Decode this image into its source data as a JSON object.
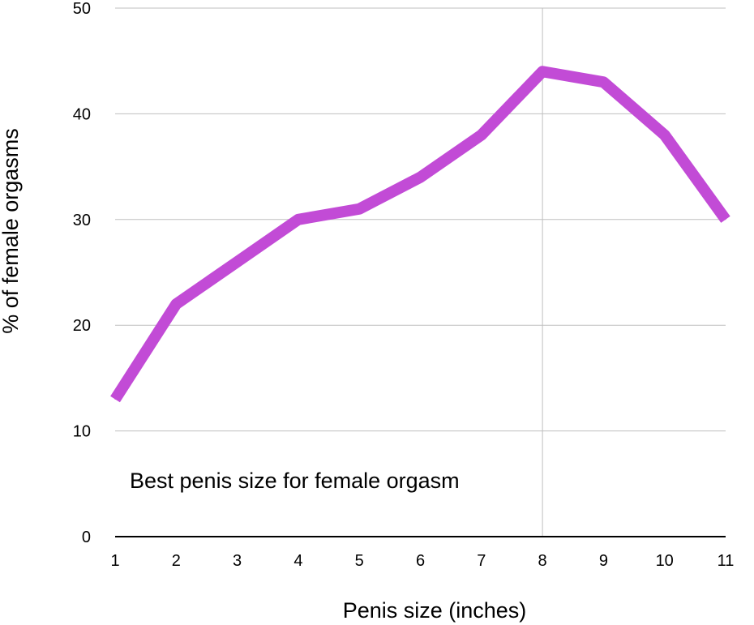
{
  "chart_data": {
    "type": "line",
    "x": [
      1,
      2,
      3,
      4,
      5,
      6,
      7,
      8,
      9,
      10,
      11
    ],
    "series": [
      {
        "values": [
          13,
          22,
          26,
          30,
          31,
          34,
          38,
          44,
          43,
          38,
          30
        ]
      }
    ],
    "xlabel": "Penis size (inches)",
    "ylabel": "% of female orgasms",
    "annotation": "Best penis size for female orgasm",
    "xlim": [
      1,
      11
    ],
    "ylim": [
      0,
      50
    ],
    "x_ticks": [
      "1",
      "2",
      "3",
      "4",
      "5",
      "6",
      "7",
      "8",
      "9",
      "10",
      "11"
    ],
    "y_ticks": [
      "0",
      "10",
      "20",
      "30",
      "40",
      "50"
    ],
    "highlight_x": 8,
    "grid": true,
    "line_color": "#c24bd6",
    "grid_color": "#bfbfbf"
  }
}
